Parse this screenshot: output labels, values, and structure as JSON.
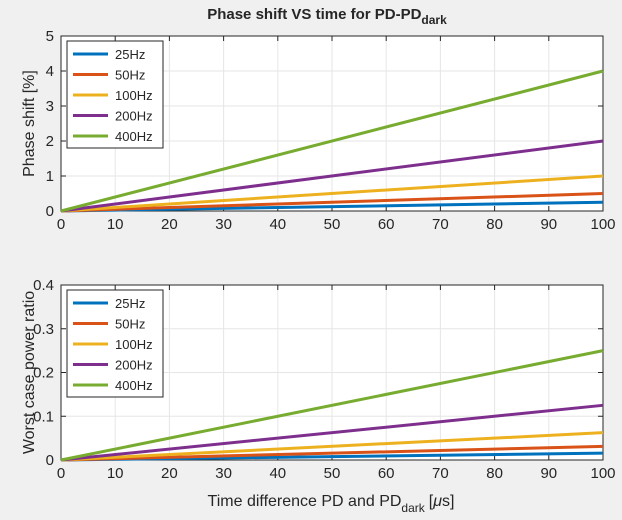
{
  "figure": {
    "title_main": "Phase shift VS time for PD-PD",
    "title_sub": "dark"
  },
  "chart_data": [
    {
      "type": "line",
      "ylabel": "Phase shift [%]",
      "xlim": [
        0,
        100
      ],
      "ylim": [
        0,
        5
      ],
      "xticks": [
        0,
        10,
        20,
        30,
        40,
        50,
        60,
        70,
        80,
        90,
        100
      ],
      "yticks": [
        0,
        1,
        2,
        3,
        4,
        5
      ],
      "x": [
        0,
        100
      ],
      "grid": true,
      "legend_position": "top-left",
      "series": [
        {
          "name": "25Hz",
          "color": "#0072BD",
          "values": [
            0,
            0.25
          ]
        },
        {
          "name": "50Hz",
          "color": "#D95319",
          "values": [
            0,
            0.5
          ]
        },
        {
          "name": "100Hz",
          "color": "#EDB120",
          "values": [
            0,
            1.0
          ]
        },
        {
          "name": "200Hz",
          "color": "#7E2F8E",
          "values": [
            0,
            2.0
          ]
        },
        {
          "name": "400Hz",
          "color": "#77AC30",
          "values": [
            0,
            4.0
          ]
        }
      ]
    },
    {
      "type": "line",
      "ylabel": "Worst case power ratio",
      "xlabel_main": "Time difference PD and PD",
      "xlabel_sub": "dark",
      "xlabel_unit_open": "[",
      "xlabel_unit_mu": "μ",
      "xlabel_unit_close": "s]",
      "xlim": [
        0,
        100
      ],
      "ylim": [
        0,
        0.4
      ],
      "xticks": [
        0,
        10,
        20,
        30,
        40,
        50,
        60,
        70,
        80,
        90,
        100
      ],
      "yticks": [
        0,
        0.1,
        0.2,
        0.3,
        0.4
      ],
      "x": [
        0,
        100
      ],
      "grid": true,
      "legend_position": "top-left",
      "series": [
        {
          "name": "25Hz",
          "color": "#0072BD",
          "values": [
            0,
            0.0156
          ]
        },
        {
          "name": "50Hz",
          "color": "#D95319",
          "values": [
            0,
            0.0312
          ]
        },
        {
          "name": "100Hz",
          "color": "#EDB120",
          "values": [
            0,
            0.0625
          ]
        },
        {
          "name": "200Hz",
          "color": "#7E2F8E",
          "values": [
            0,
            0.125
          ]
        },
        {
          "name": "400Hz",
          "color": "#77AC30",
          "values": [
            0,
            0.25
          ]
        }
      ]
    }
  ]
}
